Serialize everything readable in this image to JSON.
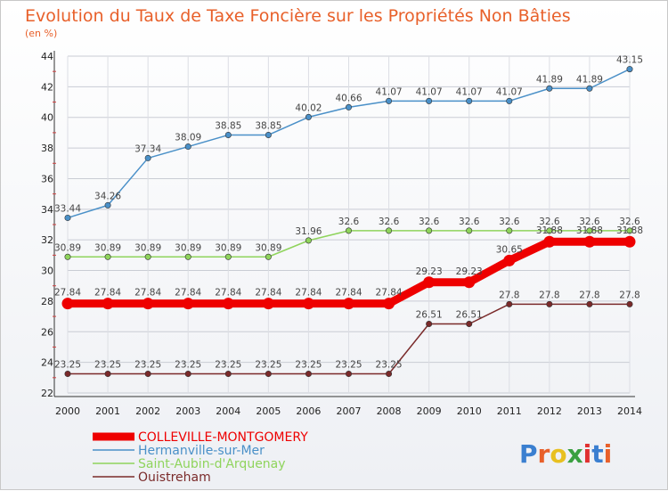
{
  "chart_data": {
    "type": "line",
    "title": "Evolution du Taux de Taxe Foncière sur les Propriétés Non Bâties",
    "unit_label": "(en %)",
    "xlabel": "",
    "ylabel": "",
    "x": [
      "2000",
      "2001",
      "2002",
      "2003",
      "2004",
      "2005",
      "2006",
      "2007",
      "2008",
      "2009",
      "2010",
      "2011",
      "2012",
      "2013",
      "2014"
    ],
    "ylim": [
      22,
      44
    ],
    "yticks": [
      "22",
      "24",
      "26",
      "28",
      "30",
      "32",
      "34",
      "36",
      "38",
      "40",
      "42",
      "44"
    ],
    "grid": true,
    "legend_position": "bottom-left",
    "series": [
      {
        "name": "Hermanville-sur-Mer",
        "color": "#4a90c8",
        "values": [
          33.44,
          34.26,
          37.34,
          38.09,
          38.85,
          38.85,
          40.02,
          40.66,
          41.07,
          41.07,
          41.07,
          41.07,
          41.89,
          41.89,
          43.15
        ],
        "labels": [
          "33.44",
          "34.26",
          "37.34",
          "38.09",
          "38.85",
          "38.85",
          "40.02",
          "40.66",
          "41.07",
          "41.07",
          "41.07",
          "41.07",
          "41.89",
          "41.89",
          "43.15"
        ]
      },
      {
        "name": "Saint-Aubin-d'Arquenay",
        "color": "#8fd45c",
        "values": [
          30.89,
          30.89,
          30.89,
          30.89,
          30.89,
          30.89,
          31.96,
          32.6,
          32.6,
          32.6,
          32.6,
          32.6,
          32.6,
          32.6,
          32.6
        ],
        "labels": [
          "30.89",
          "30.89",
          "30.89",
          "30.89",
          "30.89",
          "30.89",
          "31.96",
          "32.6",
          "32.6",
          "32.6",
          "32.6",
          "32.6",
          "32.6",
          "32.6",
          "32.6"
        ]
      },
      {
        "name": "Ouistreham",
        "color": "#7a2a2a",
        "values": [
          23.25,
          23.25,
          23.25,
          23.25,
          23.25,
          23.25,
          23.25,
          23.25,
          23.25,
          26.51,
          26.51,
          27.8,
          27.8,
          27.8,
          27.8
        ],
        "labels": [
          "23.25",
          "23.25",
          "23.25",
          "23.25",
          "23.25",
          "23.25",
          "23.25",
          "23.25",
          "23.25",
          "26.51",
          "26.51",
          "27.8",
          "27.8",
          "27.8",
          "27.8"
        ]
      },
      {
        "name": "COLLEVILLE-MONTGOMERY",
        "color": "#ee0000",
        "emphasis": true,
        "values": [
          27.84,
          27.84,
          27.84,
          27.84,
          27.84,
          27.84,
          27.84,
          27.84,
          27.84,
          29.23,
          29.23,
          30.65,
          31.88,
          31.88,
          31.88
        ],
        "labels": [
          "27.84",
          "27.84",
          "27.84",
          "27.84",
          "27.84",
          "27.84",
          "27.84",
          "27.84",
          "27.84",
          "29.23",
          "29.23",
          "30.65",
          "31.88",
          "31.88",
          "31.88"
        ]
      }
    ],
    "legend_order": [
      "COLLEVILLE-MONTGOMERY",
      "Hermanville-sur-Mer",
      "Saint-Aubin-d'Arquenay",
      "Ouistreham"
    ]
  },
  "logo": {
    "text": "Proxiti",
    "letter_colors": [
      "#3a7fd0",
      "#e8602a",
      "#e8c020",
      "#3aa040",
      "#e03030",
      "#3a7fd0",
      "#e8602a"
    ]
  }
}
